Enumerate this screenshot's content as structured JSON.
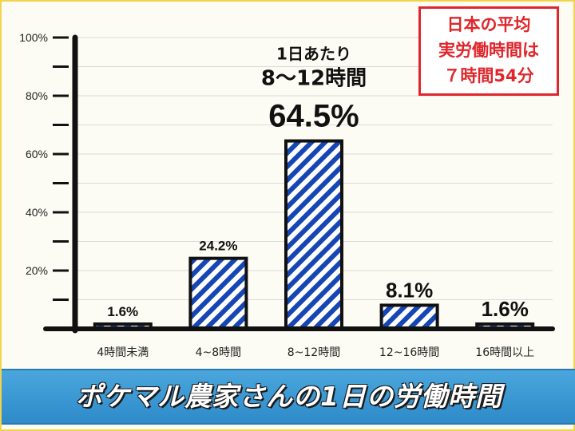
{
  "info_box": {
    "line1": "日本の平均",
    "line2": "実労働時間は",
    "line3": "７時間54分",
    "color": "#e0262b"
  },
  "banner": {
    "title": "ポケマル農家さんの1日の労働時間"
  },
  "chart_data": {
    "type": "bar",
    "title": "",
    "xlabel": "",
    "ylabel": "",
    "categories": [
      "4時間未満",
      "4~8時間",
      "8~12時間",
      "12~16時間",
      "16時間以上"
    ],
    "values": [
      1.6,
      24.2,
      64.5,
      8.1,
      1.6
    ],
    "value_labels": [
      "1.6%",
      "24.2%",
      "64.5%",
      "8.1%",
      "1.6%"
    ],
    "highlight": {
      "category_index": 2,
      "line1": "1日あたり",
      "line2": "8～12時間"
    },
    "y_ticks": [
      "20%",
      "40%",
      "60%",
      "80%",
      "100%"
    ],
    "y_tick_values": [
      20,
      40,
      60,
      80,
      100
    ],
    "ylim": [
      0,
      100
    ],
    "grid": true,
    "bar_color": "#1646b4",
    "legend": "none"
  }
}
